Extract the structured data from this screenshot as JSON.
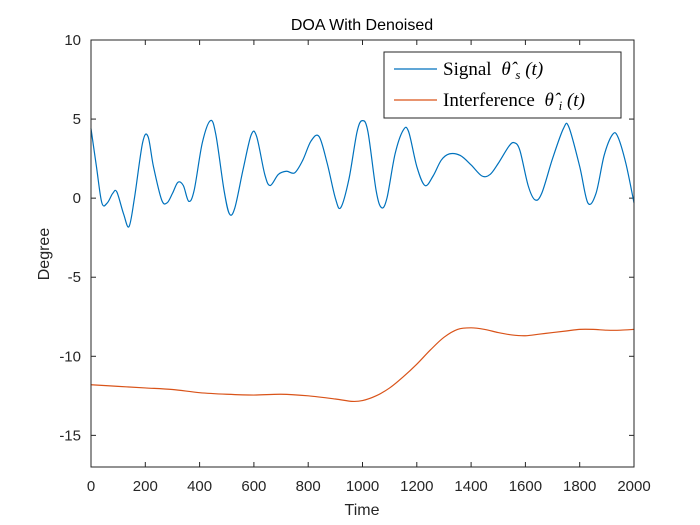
{
  "chart_data": {
    "type": "line",
    "title": "DOA With Denoised",
    "xlabel": "Time",
    "ylabel": "Degree",
    "xlim": [
      0,
      2000
    ],
    "ylim": [
      -17,
      10
    ],
    "xticks": [
      0,
      200,
      400,
      600,
      800,
      1000,
      1200,
      1400,
      1600,
      1800,
      2000
    ],
    "yticks": [
      10,
      5,
      0,
      -5,
      -10,
      -15
    ],
    "xtick_labels": [
      "0",
      "200",
      "400",
      "600",
      "800",
      "1000",
      "1200",
      "1400",
      "1600",
      "1800",
      "2000"
    ],
    "ytick_labels": [
      "10",
      "5",
      "0",
      "-5",
      "-10",
      "-15"
    ],
    "legend_position": "top-right",
    "series": [
      {
        "name": "Signal",
        "legend_label": "Signal θ̂s(t)",
        "legend_main": "Signal",
        "legend_symbol": "θ̂",
        "legend_sub": "s",
        "legend_arg": "(t)",
        "color": "#0072BD",
        "points": [
          [
            0,
            4.4
          ],
          [
            20,
            2.0
          ],
          [
            40,
            -0.3
          ],
          [
            60,
            -0.3
          ],
          [
            80,
            0.3
          ],
          [
            95,
            0.4
          ],
          [
            120,
            -1.0
          ],
          [
            140,
            -1.8
          ],
          [
            160,
            0.0
          ],
          [
            190,
            3.5
          ],
          [
            210,
            3.9
          ],
          [
            230,
            2.0
          ],
          [
            260,
            -0.1
          ],
          [
            280,
            -0.3
          ],
          [
            300,
            0.3
          ],
          [
            320,
            1.0
          ],
          [
            340,
            0.8
          ],
          [
            360,
            -0.2
          ],
          [
            380,
            0.5
          ],
          [
            410,
            3.5
          ],
          [
            440,
            4.9
          ],
          [
            460,
            4.0
          ],
          [
            490,
            0.5
          ],
          [
            510,
            -1.0
          ],
          [
            530,
            -0.6
          ],
          [
            560,
            1.8
          ],
          [
            590,
            4.0
          ],
          [
            610,
            3.9
          ],
          [
            640,
            1.5
          ],
          [
            660,
            0.8
          ],
          [
            690,
            1.5
          ],
          [
            720,
            1.7
          ],
          [
            750,
            1.6
          ],
          [
            780,
            2.4
          ],
          [
            810,
            3.6
          ],
          [
            840,
            3.9
          ],
          [
            870,
            2.2
          ],
          [
            900,
            0.0
          ],
          [
            920,
            -0.6
          ],
          [
            950,
            1.2
          ],
          [
            980,
            4.2
          ],
          [
            1000,
            4.9
          ],
          [
            1020,
            4.2
          ],
          [
            1050,
            0.5
          ],
          [
            1070,
            -0.6
          ],
          [
            1090,
            0.0
          ],
          [
            1120,
            2.8
          ],
          [
            1150,
            4.3
          ],
          [
            1170,
            4.2
          ],
          [
            1200,
            2.0
          ],
          [
            1230,
            0.8
          ],
          [
            1260,
            1.4
          ],
          [
            1290,
            2.4
          ],
          [
            1320,
            2.8
          ],
          [
            1360,
            2.7
          ],
          [
            1400,
            2.1
          ],
          [
            1440,
            1.4
          ],
          [
            1470,
            1.5
          ],
          [
            1500,
            2.2
          ],
          [
            1540,
            3.3
          ],
          [
            1560,
            3.5
          ],
          [
            1580,
            3.0
          ],
          [
            1610,
            0.8
          ],
          [
            1635,
            -0.1
          ],
          [
            1660,
            0.3
          ],
          [
            1700,
            2.5
          ],
          [
            1740,
            4.4
          ],
          [
            1760,
            4.5
          ],
          [
            1800,
            2.0
          ],
          [
            1830,
            -0.3
          ],
          [
            1860,
            0.3
          ],
          [
            1890,
            2.7
          ],
          [
            1920,
            4.0
          ],
          [
            1940,
            3.9
          ],
          [
            1970,
            2.2
          ],
          [
            2000,
            -0.3
          ]
        ]
      },
      {
        "name": "Interference",
        "legend_label": "Interference θ̂i(t)",
        "legend_main": "Interference",
        "legend_symbol": "θ̂",
        "legend_sub": "i",
        "legend_arg": "(t)",
        "color": "#D95319",
        "points": [
          [
            0,
            -11.8
          ],
          [
            100,
            -11.9
          ],
          [
            200,
            -12.0
          ],
          [
            300,
            -12.1
          ],
          [
            400,
            -12.3
          ],
          [
            500,
            -12.4
          ],
          [
            600,
            -12.45
          ],
          [
            700,
            -12.4
          ],
          [
            800,
            -12.5
          ],
          [
            900,
            -12.7
          ],
          [
            960,
            -12.85
          ],
          [
            1000,
            -12.8
          ],
          [
            1050,
            -12.5
          ],
          [
            1100,
            -12.0
          ],
          [
            1150,
            -11.3
          ],
          [
            1200,
            -10.5
          ],
          [
            1250,
            -9.6
          ],
          [
            1300,
            -8.8
          ],
          [
            1350,
            -8.3
          ],
          [
            1400,
            -8.2
          ],
          [
            1450,
            -8.3
          ],
          [
            1500,
            -8.5
          ],
          [
            1550,
            -8.65
          ],
          [
            1600,
            -8.7
          ],
          [
            1650,
            -8.6
          ],
          [
            1700,
            -8.5
          ],
          [
            1750,
            -8.4
          ],
          [
            1800,
            -8.3
          ],
          [
            1850,
            -8.3
          ],
          [
            1900,
            -8.35
          ],
          [
            1950,
            -8.35
          ],
          [
            2000,
            -8.3
          ]
        ]
      }
    ]
  }
}
